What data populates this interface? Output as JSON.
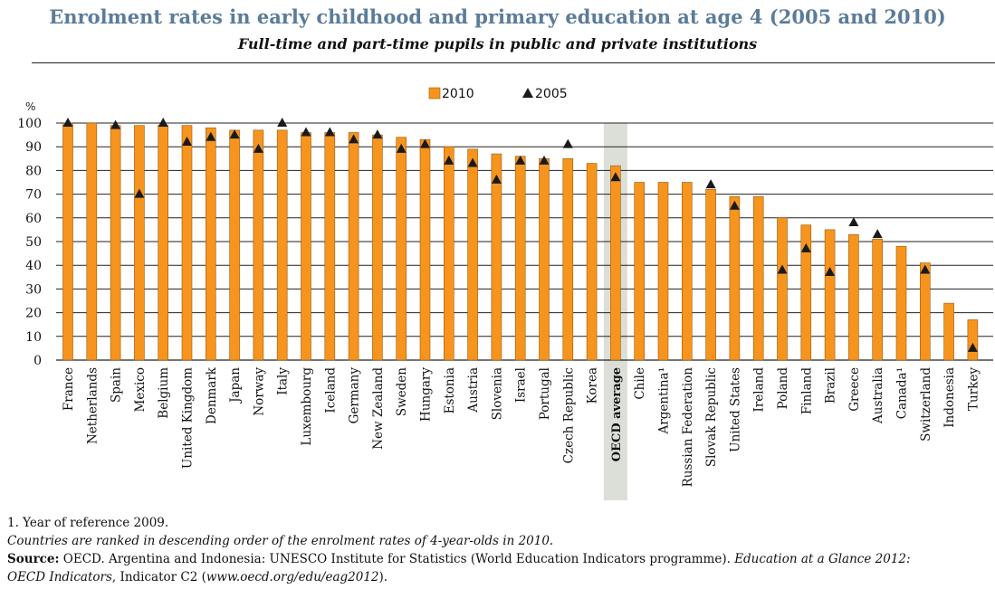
{
  "header": {
    "title": "Enrolment rates in early childhood and primary education at age 4 (2005 and 2010)",
    "subtitle": "Full-time and part-time pupils in public and private institutions"
  },
  "chart_data": {
    "type": "bar",
    "ylabel": "%",
    "ylim": [
      0,
      100
    ],
    "yticks": [
      0,
      10,
      20,
      30,
      40,
      50,
      60,
      70,
      80,
      90,
      100
    ],
    "grid": true,
    "legend_position": "top-center",
    "colors": {
      "bar": "#f7941d",
      "bar_edge": "#9a5a10",
      "marker": "#1a1a1a",
      "highlight": "#dcdfd8",
      "grid": "#222222"
    },
    "categories": [
      "France",
      "Netherlands",
      "Spain",
      "Mexico",
      "Belgium",
      "United Kingdom",
      "Denmark",
      "Japan",
      "Norway",
      "Italy",
      "Luxembourg",
      "Iceland",
      "Germany",
      "New Zealand",
      "Sweden",
      "Hungary",
      "Estonia",
      "Austria",
      "Slovenia",
      "Israel",
      "Portugal",
      "Czech Republic",
      "Korea",
      "OECD average",
      "Chile",
      "Argentina¹",
      "Russian Federation",
      "Slovak Republic",
      "United States",
      "Ireland",
      "Poland",
      "Finland",
      "Brazil",
      "Greece",
      "Australia",
      "Canada¹",
      "Switzerland",
      "Indonesia",
      "Turkey"
    ],
    "highlight_category": "OECD average",
    "series": [
      {
        "name": "2010",
        "kind": "bar",
        "values": [
          100,
          100,
          99,
          99,
          99,
          99,
          98,
          97,
          97,
          97,
          96,
          96,
          96,
          95,
          94,
          93,
          90,
          89,
          87,
          86,
          85,
          85,
          83,
          82,
          75,
          75,
          75,
          72,
          69,
          69,
          60,
          57,
          55,
          53,
          51,
          48,
          41,
          24,
          17
        ]
      },
      {
        "name": "2005",
        "kind": "marker",
        "values": [
          100,
          null,
          99,
          70,
          100,
          92,
          94,
          95,
          89,
          100,
          96,
          96,
          93,
          95,
          89,
          91,
          84,
          83,
          76,
          84,
          84,
          91,
          null,
          77,
          null,
          null,
          null,
          74,
          65,
          null,
          38,
          47,
          37,
          58,
          53,
          null,
          38,
          null,
          5
        ]
      }
    ]
  },
  "notes": {
    "footnote": "1. Year of reference 2009.",
    "ranking": "Countries are ranked in descending order of the enrolment rates of 4-year-olds in 2010.",
    "source_label": "Source:",
    "source_text": " OECD. Argentina and Indonesia: UNESCO Institute for Statistics (World Education Indicators programme). ",
    "source_pub": "Education at a Glance 2012:",
    "source_pub2": "OECD Indicators",
    "source_text2": ", Indicator C2 (",
    "source_url": "www.oecd.org/edu/eag2012",
    "source_end": ")."
  }
}
